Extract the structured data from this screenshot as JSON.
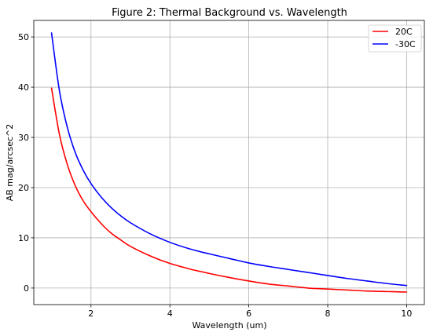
{
  "chart_data": {
    "type": "line",
    "title": "Figure 2: Thermal Background vs. Wavelength",
    "xlabel": "Wavelength (um)",
    "ylabel": "AB mag/arcsec^2",
    "xlim": [
      0.55,
      10.45
    ],
    "ylim": [
      -3.3,
      53.3
    ],
    "xticks": [
      2,
      4,
      6,
      8,
      10
    ],
    "yticks": [
      0,
      10,
      20,
      30,
      40,
      50
    ],
    "xtick_labels": [
      "2",
      "4",
      "6",
      "8",
      "10"
    ],
    "ytick_labels": [
      "0",
      "10",
      "20",
      "30",
      "40",
      "50"
    ],
    "grid": true,
    "legend_position": "top-right",
    "x": [
      1.0,
      1.2,
      1.4,
      1.6,
      1.8,
      2.0,
      2.25,
      2.5,
      2.75,
      3.0,
      3.5,
      4.0,
      4.5,
      5.0,
      5.5,
      6.0,
      6.5,
      7.0,
      7.5,
      8.0,
      8.5,
      9.0,
      9.5,
      10.0
    ],
    "series": [
      {
        "name": "20C",
        "color": "#ff0000",
        "values": [
          39.8,
          30.6,
          24.6,
          20.4,
          17.4,
          15.2,
          12.9,
          11.0,
          9.6,
          8.3,
          6.4,
          4.9,
          3.8,
          2.9,
          2.1,
          1.4,
          0.8,
          0.4,
          0.0,
          -0.2,
          -0.4,
          -0.6,
          -0.7,
          -0.8
        ]
      },
      {
        "name": "-30C",
        "color": "#0000ff",
        "values": [
          50.8,
          39.3,
          32.0,
          27.0,
          23.5,
          20.8,
          18.2,
          16.1,
          14.4,
          13.0,
          10.8,
          9.1,
          7.8,
          6.8,
          5.9,
          5.0,
          4.3,
          3.7,
          3.1,
          2.5,
          1.9,
          1.4,
          0.9,
          0.5
        ]
      }
    ]
  }
}
